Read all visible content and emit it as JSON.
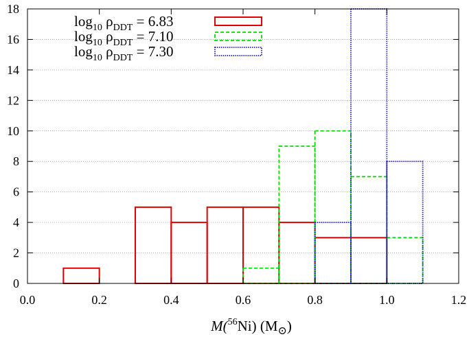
{
  "chart_data": {
    "type": "histogram",
    "title": "",
    "xlabel": {
      "main": "M(",
      "sup": "56",
      "mid": "Ni) (M",
      "sub": "⊙",
      "end": ")"
    },
    "ylabel": "",
    "xlim": [
      0.0,
      1.2
    ],
    "ylim": [
      0,
      18
    ],
    "xticks": [
      "0.0",
      "0.2",
      "0.4",
      "0.6",
      "0.8",
      "1.0",
      "1.2"
    ],
    "yticks": [
      "0",
      "2",
      "4",
      "6",
      "8",
      "10",
      "12",
      "14",
      "16",
      "18"
    ],
    "grid": "horizontal dotted",
    "legend_position": "top-left",
    "bin_width": 0.1,
    "series": [
      {
        "name": "log10 ρDDT = 6.83",
        "label_log": "log",
        "label_log_sub": "10",
        "label_rho": " ρ",
        "label_rho_sub": "DDT",
        "label_value": " = 6.83",
        "color": "#e00000",
        "dash": "none",
        "bins": [
          {
            "x0": 0.1,
            "count": 1
          },
          {
            "x0": 0.3,
            "count": 5
          },
          {
            "x0": 0.4,
            "count": 4
          },
          {
            "x0": 0.5,
            "count": 5
          },
          {
            "x0": 0.6,
            "count": 5
          },
          {
            "x0": 0.7,
            "count": 4
          },
          {
            "x0": 0.8,
            "count": 3
          },
          {
            "x0": 0.9,
            "count": 3
          }
        ]
      },
      {
        "name": "log10 ρDDT = 7.10",
        "label_log": "log",
        "label_log_sub": "10",
        "label_rho": " ρ",
        "label_rho_sub": "DDT",
        "label_value": " = 7.10",
        "color": "#00dd00",
        "dash": "5,3",
        "bins": [
          {
            "x0": 0.6,
            "count": 1
          },
          {
            "x0": 0.7,
            "count": 9
          },
          {
            "x0": 0.8,
            "count": 10
          },
          {
            "x0": 0.9,
            "count": 7
          },
          {
            "x0": 1.0,
            "count": 3
          }
        ]
      },
      {
        "name": "log10 ρDDT = 7.30",
        "label_log": "log",
        "label_log_sub": "10",
        "label_rho": " ρ",
        "label_rho_sub": "DDT",
        "label_value": " = 7.30",
        "color": "#2020c0",
        "dash": "1.5,1.5",
        "bins": [
          {
            "x0": 0.8,
            "count": 4
          },
          {
            "x0": 0.9,
            "count": 18
          },
          {
            "x0": 1.0,
            "count": 8
          }
        ]
      }
    ]
  }
}
